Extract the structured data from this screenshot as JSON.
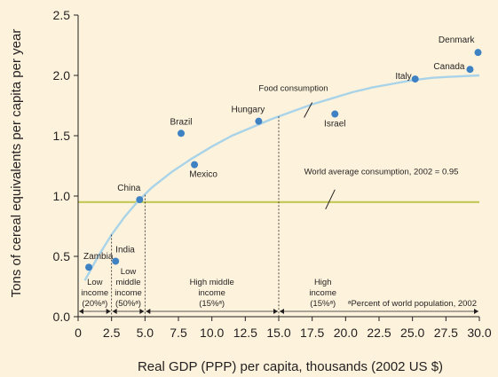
{
  "chart_data": {
    "type": "scatter",
    "title": "",
    "xlabel": "Real GDP (PPP) per capita, thousands (2002 US $)",
    "ylabel": "Tons of cereal equivalents per capita per year",
    "xlim": [
      0,
      30
    ],
    "ylim": [
      0,
      2.5
    ],
    "xticks": [
      "0",
      "2.5",
      "5.0",
      "7.5",
      "10.0",
      "12.5",
      "15.0",
      "17.5",
      "20.0",
      "22.5",
      "25.0",
      "27.5",
      "30.0"
    ],
    "yticks": [
      "0.0",
      "0.5",
      "1.0",
      "1.5",
      "2.0",
      "2.5"
    ],
    "points": [
      {
        "label": "Zambia",
        "x": 0.8,
        "y": 0.41
      },
      {
        "label": "India",
        "x": 2.8,
        "y": 0.46
      },
      {
        "label": "China",
        "x": 4.6,
        "y": 0.97
      },
      {
        "label": "Brazil",
        "x": 7.7,
        "y": 1.52
      },
      {
        "label": "Mexico",
        "x": 8.7,
        "y": 1.26
      },
      {
        "label": "Hungary",
        "x": 13.5,
        "y": 1.62
      },
      {
        "label": "Israel",
        "x": 19.2,
        "y": 1.68
      },
      {
        "label": "Italy",
        "x": 25.2,
        "y": 1.97
      },
      {
        "label": "Canada",
        "x": 29.3,
        "y": 2.05
      },
      {
        "label": "Denmark",
        "x": 29.9,
        "y": 2.19
      }
    ],
    "curve": {
      "label": "Food consumption",
      "x": [
        0.5,
        1.5,
        2.5,
        3.5,
        4.5,
        5.5,
        7,
        8.5,
        10,
        11.5,
        13,
        14.5,
        16,
        17.5,
        19,
        20.5,
        22,
        23.5,
        25,
        26.5,
        28,
        30
      ],
      "y": [
        0.3,
        0.5,
        0.68,
        0.83,
        0.96,
        1.07,
        1.2,
        1.31,
        1.41,
        1.5,
        1.57,
        1.64,
        1.7,
        1.76,
        1.81,
        1.86,
        1.9,
        1.93,
        1.96,
        1.98,
        1.99,
        2.0
      ]
    },
    "reference_line": {
      "label": "World average consumption, 2002 = 0.95",
      "y": 0.95
    },
    "income_groups": [
      {
        "lines": [
          "Low",
          "income",
          "(20%ᵃ)"
        ],
        "x_range": [
          0,
          2.5
        ]
      },
      {
        "lines": [
          "Low",
          "middle",
          "income",
          "(50%ᵃ)"
        ],
        "x_range": [
          2.5,
          5.0
        ]
      },
      {
        "lines": [
          "High middle",
          "income",
          "(15%ᵃ)"
        ],
        "x_range": [
          5.0,
          15.0
        ]
      },
      {
        "lines": [
          "High",
          "income",
          "(15%ᵃ)"
        ],
        "x_range": [
          15.0,
          30.0
        ]
      }
    ],
    "footnote": "ᵃPercent of world population, 2002"
  }
}
